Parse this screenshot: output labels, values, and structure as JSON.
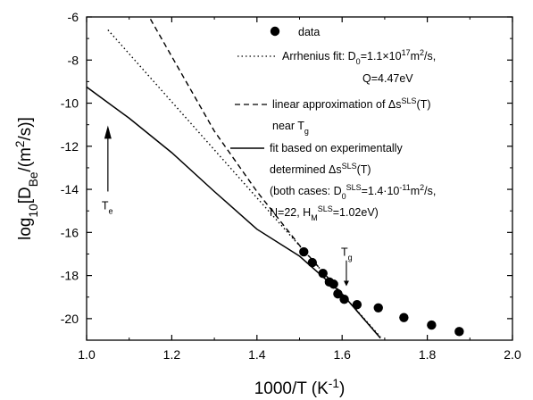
{
  "chart_data": {
    "type": "scatter",
    "xlabel": "1000/T (K⁻¹)",
    "ylabel": "log₁₀[D_Be/(m²/s)]",
    "xlim": [
      1.0,
      2.0
    ],
    "ylim": [
      -21,
      -6
    ],
    "xticks": [
      1.0,
      1.2,
      1.4,
      1.6,
      1.8,
      2.0
    ],
    "xtick_labels": [
      "1.0",
      "1.2",
      "1.4",
      "1.6",
      "1.8",
      "2.0"
    ],
    "yticks": [
      -20,
      -18,
      -16,
      -14,
      -12,
      -10,
      -8,
      -6
    ],
    "ytick_labels": [
      "-20",
      "-18",
      "-16",
      "-14",
      "-12",
      "-10",
      "-8",
      "-6"
    ],
    "grid": false,
    "legend_position": "top-right",
    "series": [
      {
        "name": "data",
        "style": "points",
        "x": [
          1.51,
          1.53,
          1.555,
          1.57,
          1.58,
          1.59,
          1.605,
          1.635,
          1.685,
          1.745,
          1.81,
          1.875
        ],
        "y": [
          -16.9,
          -17.4,
          -17.9,
          -18.3,
          -18.4,
          -18.85,
          -19.1,
          -19.35,
          -19.5,
          -19.95,
          -20.3,
          -20.6
        ]
      },
      {
        "name": "Arrhenius fit: D₀=1.1×10¹⁷m²/s, Q=4.47eV",
        "style": "dotted",
        "x": [
          1.05,
          1.69
        ],
        "y": [
          -6.6,
          -20.85
        ]
      },
      {
        "name": "linear approximation of Δsˢˡˢ(T) near T_g",
        "style": "dashed",
        "x": [
          1.15,
          1.3,
          1.4,
          1.5,
          1.6,
          1.69
        ],
        "y": [
          -6.1,
          -11.3,
          -14.1,
          -16.6,
          -18.85,
          -20.9
        ]
      },
      {
        "name": "fit based on experimentally determined Δsˢˡˢ(T)",
        "style": "solid",
        "x": [
          1.0,
          1.1,
          1.2,
          1.3,
          1.4,
          1.5,
          1.6,
          1.69
        ],
        "y": [
          -9.25,
          -10.7,
          -12.3,
          -14.1,
          -15.85,
          -17.1,
          -18.85,
          -20.9
        ]
      }
    ],
    "legend": {
      "data": "data",
      "arrhenius_1": "Arrhenius fit: D",
      "arrhenius_1_sub": "0",
      "arrhenius_1_tail": "=1.1×10",
      "arrhenius_1_sup": "17",
      "arrhenius_1_unit": "m",
      "arrhenius_1_unit_sup": "2",
      "arrhenius_1_end": "/s,",
      "arrhenius_2": "Q=4.47eV",
      "linear_1": "linear approximation of Δs",
      "linear_1_sup": "SLS",
      "linear_1_end": "(T)",
      "linear_2": "near T",
      "linear_2_sub": "g",
      "fit_1": "fit based on experimentally",
      "fit_2": "determined Δs",
      "fit_2_sup": "SLS",
      "fit_2_end": "(T)",
      "both_1": "(both cases: D",
      "both_1_sub": "0",
      "both_1_sup": "SLS",
      "both_1_end": "=1.4·10",
      "both_1_exp": "-11",
      "both_1_unit": "m",
      "both_1_unit_sup": "2",
      "both_1_tail": "/s,",
      "both_2": "N=22, H",
      "both_2_sub": "M",
      "both_2_sup": "SLS",
      "both_2_end": "=1.02eV)"
    },
    "annotations": {
      "te_label": "T",
      "te_sub": "e",
      "te_arrow_x": 1.05,
      "tg_label": "T",
      "tg_sub": "g",
      "tg_arrow_x": 1.61
    },
    "axis_title_parts": {
      "y_main": "log",
      "y_sub": "10",
      "y_mid": "[D",
      "y_sub2": "Be",
      "y_mid2": "/(m",
      "y_sup": "2",
      "y_end": "/s)]",
      "x_main": "1000/T (K",
      "x_sup": "-1",
      "x_end": ")"
    }
  }
}
